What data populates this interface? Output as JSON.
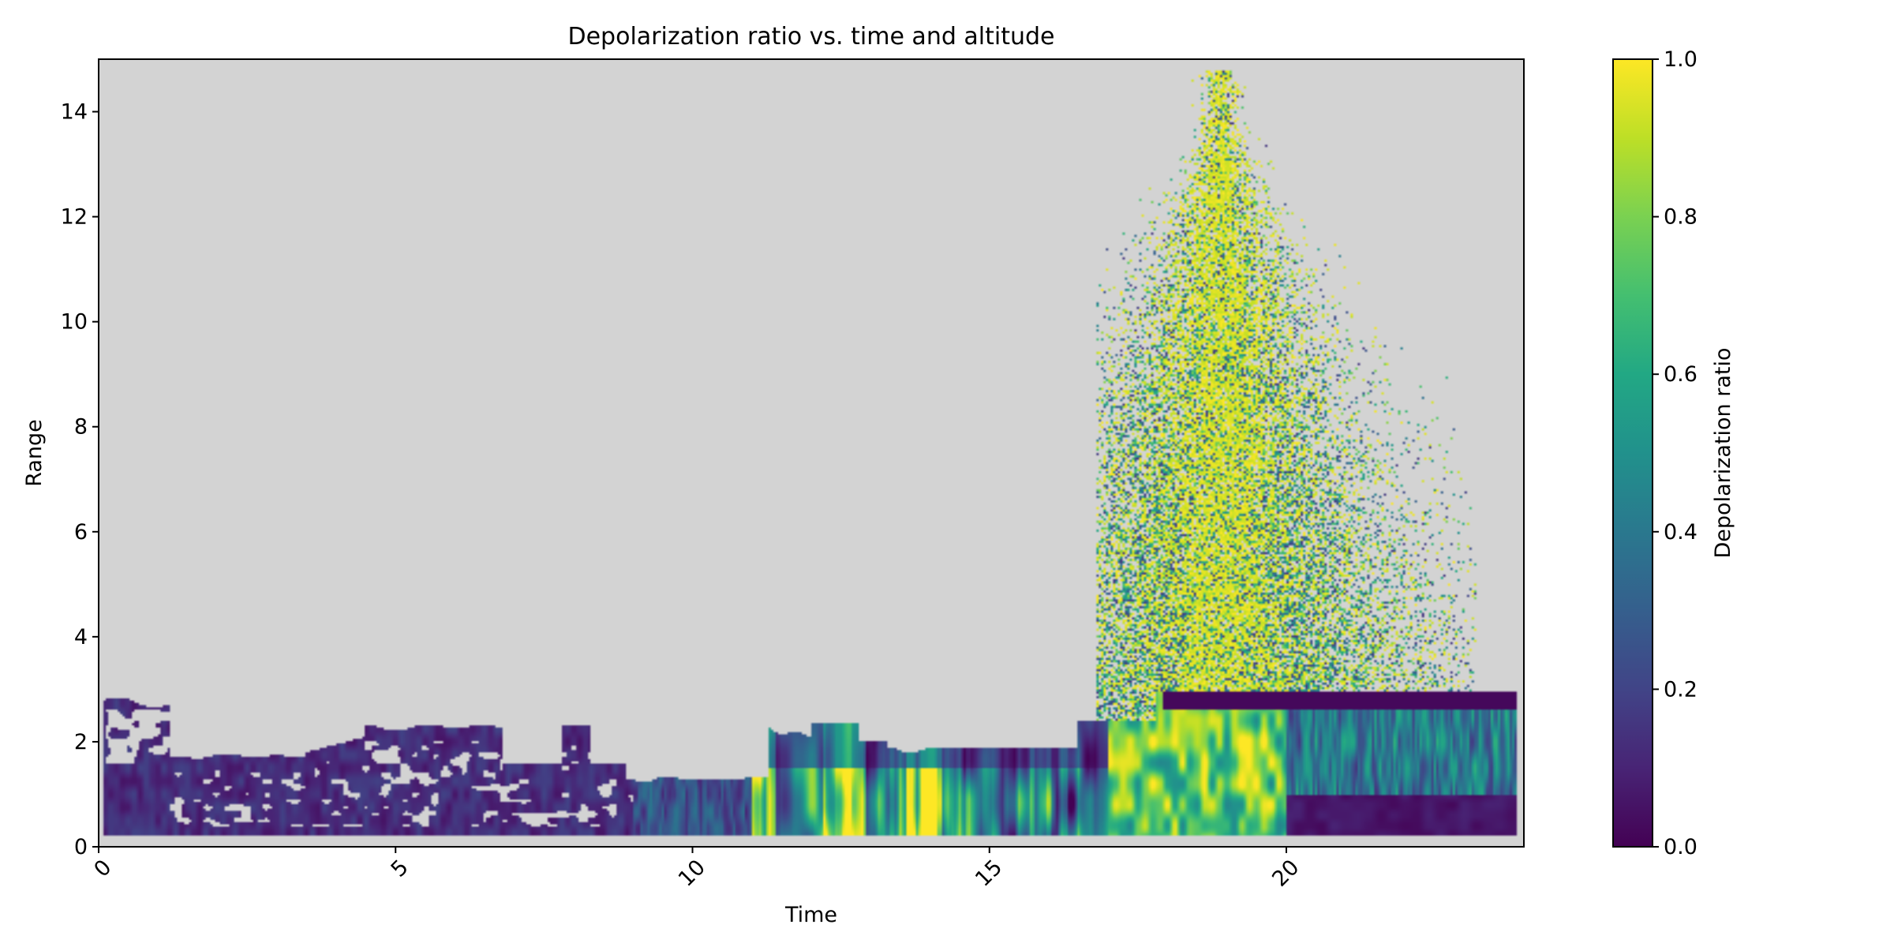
{
  "chart_data": {
    "type": "heatmap",
    "title": "Depolarization ratio vs. time and altitude",
    "xlabel": "Time",
    "ylabel": "Range",
    "xlim": [
      0,
      24
    ],
    "ylim": [
      0,
      15
    ],
    "x_ticks": [
      0,
      5,
      10,
      15,
      20
    ],
    "x_tick_labels": [
      "0",
      "5",
      "10",
      "15",
      "20"
    ],
    "y_ticks": [
      0,
      2,
      4,
      6,
      8,
      10,
      12,
      14
    ],
    "y_tick_labels": [
      "0",
      "2",
      "4",
      "6",
      "8",
      "10",
      "12",
      "14"
    ],
    "colormap": "viridis",
    "missing_color": "#d3d3d3",
    "colorbar": {
      "label": "Depolarization ratio",
      "range": [
        0.0,
        1.0
      ],
      "ticks": [
        0.0,
        0.2,
        0.4,
        0.6,
        0.8,
        1.0
      ],
      "tick_labels": [
        "0.0",
        "0.2",
        "0.4",
        "0.6",
        "0.8",
        "1.0"
      ]
    },
    "data_extent": {
      "time": [
        0,
        24
      ],
      "range": [
        0.2,
        15
      ]
    },
    "regions_approx": [
      {
        "time": [
          0,
          9
        ],
        "range": [
          0.2,
          2.5
        ],
        "value": 0.1
      },
      {
        "time": [
          9,
          11
        ],
        "range": [
          0.2,
          1.3
        ],
        "value": 0.2
      },
      {
        "time": [
          11,
          17
        ],
        "range": [
          0.2,
          2.0
        ],
        "value": 0.5
      },
      {
        "time": [
          17,
          20
        ],
        "range": [
          0.2,
          14.8
        ],
        "value": 0.85
      },
      {
        "time": [
          18,
          24
        ],
        "range": [
          2.7,
          3.0
        ],
        "value": 0.0
      },
      {
        "time": [
          20,
          24
        ],
        "range": [
          0.2,
          2.7
        ],
        "value": 0.05
      }
    ]
  }
}
